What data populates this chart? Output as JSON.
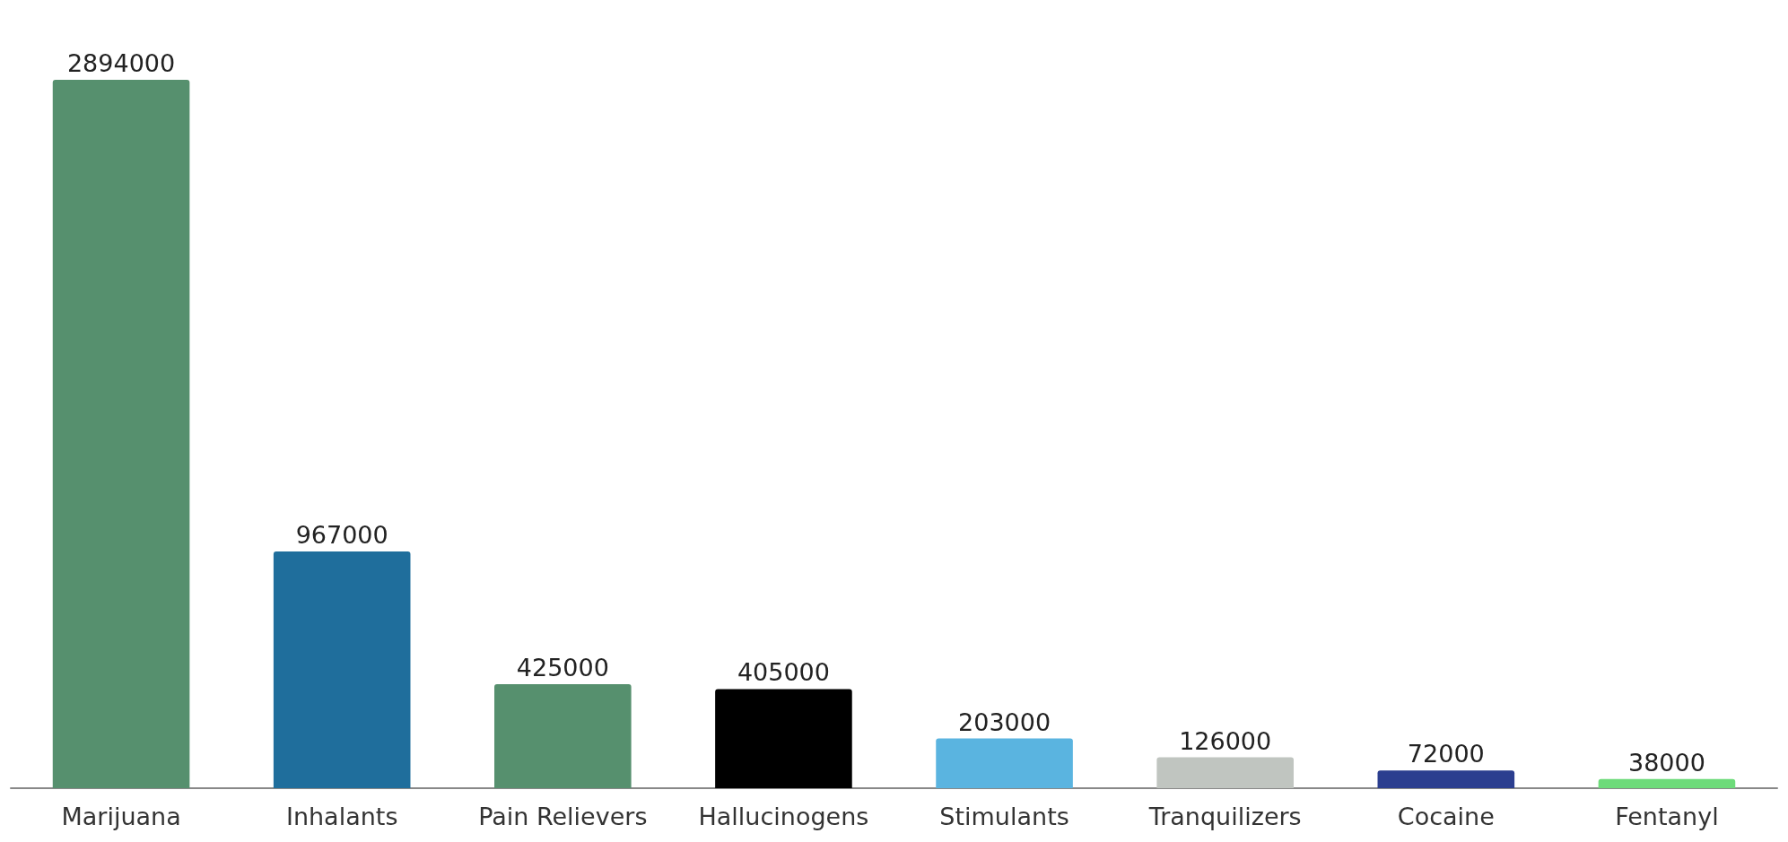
{
  "chart_data": {
    "type": "bar",
    "categories": [
      "Marijuana",
      "Inhalants",
      "Pain Relievers",
      "Hallucinogens",
      "Stimulants",
      "Tranquilizers",
      "Cocaine",
      "Fentanyl"
    ],
    "values": [
      2894000,
      967000,
      425000,
      405000,
      203000,
      126000,
      72000,
      38000
    ],
    "colors": [
      "#56906e",
      "#1f6e9c",
      "#56906e",
      "#000000",
      "#5ab4e0",
      "#c0c5c0",
      "#2b3e8f",
      "#6ddb7a"
    ],
    "data_labels": true
  }
}
